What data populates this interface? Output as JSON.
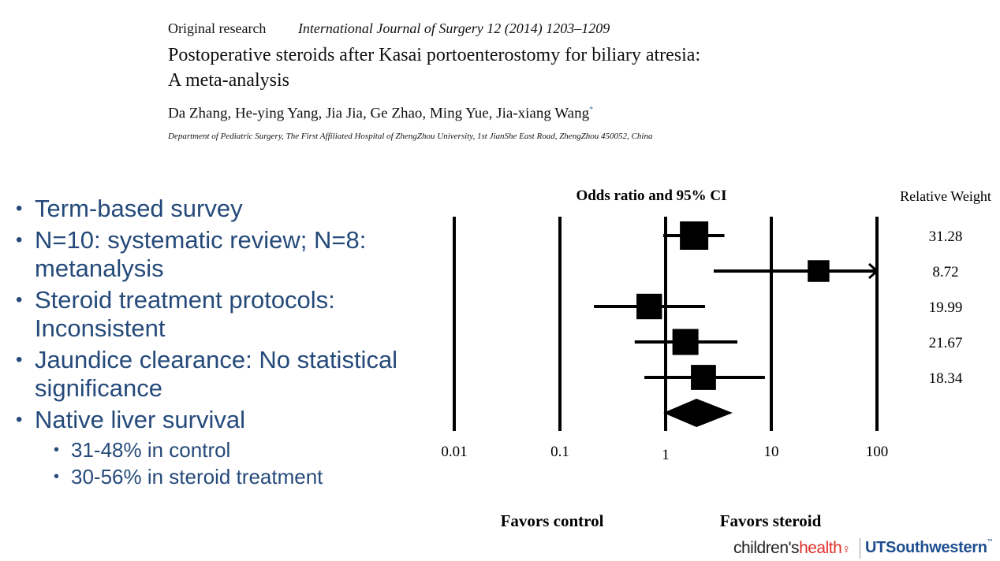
{
  "header": {
    "article_type": "Original research",
    "journal": "International Journal of Surgery 12 (2014) 1203–1209",
    "title_line1": "Postoperative steroids after Kasai portoenterostomy for biliary atresia:",
    "title_line2": "A meta-analysis",
    "authors": "Da Zhang, He-ying Yang, Jia Jia, Ge Zhao, Ming Yue, Jia-xiang Wang",
    "author_mark": "*",
    "affiliation": "Department of Pediatric Surgery, The First Affiliated Hospital of ZhengZhou University, 1st JianShe East Road, ZhengZhou 450052, China"
  },
  "bullets": [
    {
      "text": "Term-based survey"
    },
    {
      "text": "N=10: systematic review; N=8: metanalysis"
    },
    {
      "text": "Steroid treatment protocols: Inconsistent"
    },
    {
      "text": "Jaundice clearance: No statistical significance"
    },
    {
      "text": "Native liver survival",
      "sub": [
        "31-48% in control",
        "30-56% in steroid treatment"
      ]
    }
  ],
  "chart_data": {
    "type": "forest",
    "title": "Odds ratio and 95% CI",
    "weight_header": "Relative Weight",
    "x_scale": "log",
    "xlim": [
      0.01,
      100
    ],
    "ticks": [
      0.01,
      0.1,
      1,
      10,
      100
    ],
    "tick_labels": [
      "0.01",
      "0.1",
      "1",
      "10",
      "100"
    ],
    "gridlines": [
      0.01,
      0.1,
      1,
      10,
      100
    ],
    "favors_left": "Favors control",
    "favors_right": "Favors steroid",
    "studies": [
      {
        "or": 1.86,
        "ci_low": 0.95,
        "ci_high": 3.6,
        "weight": "31.28",
        "truncated_high": false
      },
      {
        "or": 28.0,
        "ci_low": 2.85,
        "ci_high": 100,
        "weight": "8.72",
        "truncated_high": true
      },
      {
        "or": 0.7,
        "ci_low": 0.21,
        "ci_high": 2.36,
        "weight": "19.99",
        "truncated_high": false
      },
      {
        "or": 1.54,
        "ci_low": 0.51,
        "ci_high": 4.78,
        "weight": "21.67",
        "truncated_high": false
      },
      {
        "or": 2.28,
        "ci_low": 0.63,
        "ci_high": 8.7,
        "weight": "18.34",
        "truncated_high": false
      }
    ],
    "summary": {
      "or": 1.96,
      "ci_low": 0.95,
      "ci_high": 4.3
    }
  },
  "logos": {
    "left_part1": "children's",
    "left_part2": "health",
    "right": "UTSouthwestern",
    "right_mark": "™"
  },
  "colors": {
    "bullet_text": "#254a7a",
    "chart_ink": "#000000",
    "logo_red": "#e0302a",
    "logo_blue": "#1f4f8f"
  }
}
